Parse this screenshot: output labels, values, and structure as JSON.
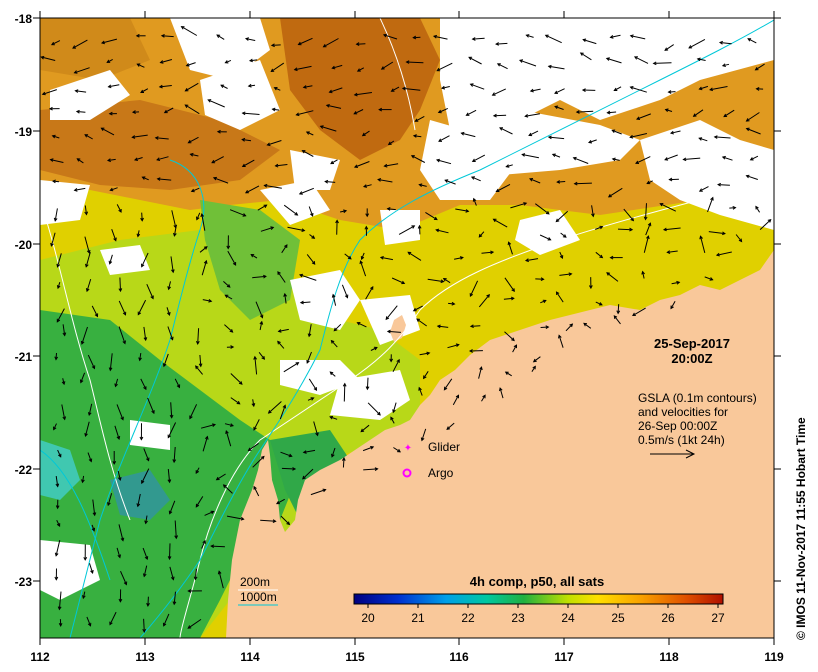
{
  "title": {
    "date": "25-Sep-2017",
    "time": "20:00Z"
  },
  "annotation": {
    "lines": [
      "GSLA (0.1m contours)",
      "and velocities for",
      "26-Sep 00:00Z",
      "0.5m/s (1kt 24h)"
    ]
  },
  "legend": {
    "glider": "Glider",
    "argo": "Argo",
    "depth_200": "200m",
    "depth_1000": "1000m"
  },
  "colorbar": {
    "label": "4h comp, p50, all sats",
    "ticks": [
      "20",
      "21",
      "22",
      "23",
      "24",
      "25",
      "26",
      "27"
    ],
    "min": 20,
    "max": 27
  },
  "axes": {
    "lon_ticks": [
      "112",
      "113",
      "114",
      "115",
      "116",
      "117",
      "118",
      "119"
    ],
    "lat_ticks": [
      "-18",
      "-19",
      "-20",
      "-21",
      "-22",
      "-23"
    ]
  },
  "credit": "© IMOS 11-Nov-2017 11:55 Hobart Time",
  "colors": {
    "land": "#f9c89a",
    "depth_200": "#ffffff",
    "depth_1000": "#00c8d8",
    "marker": "#ff00ff"
  }
}
